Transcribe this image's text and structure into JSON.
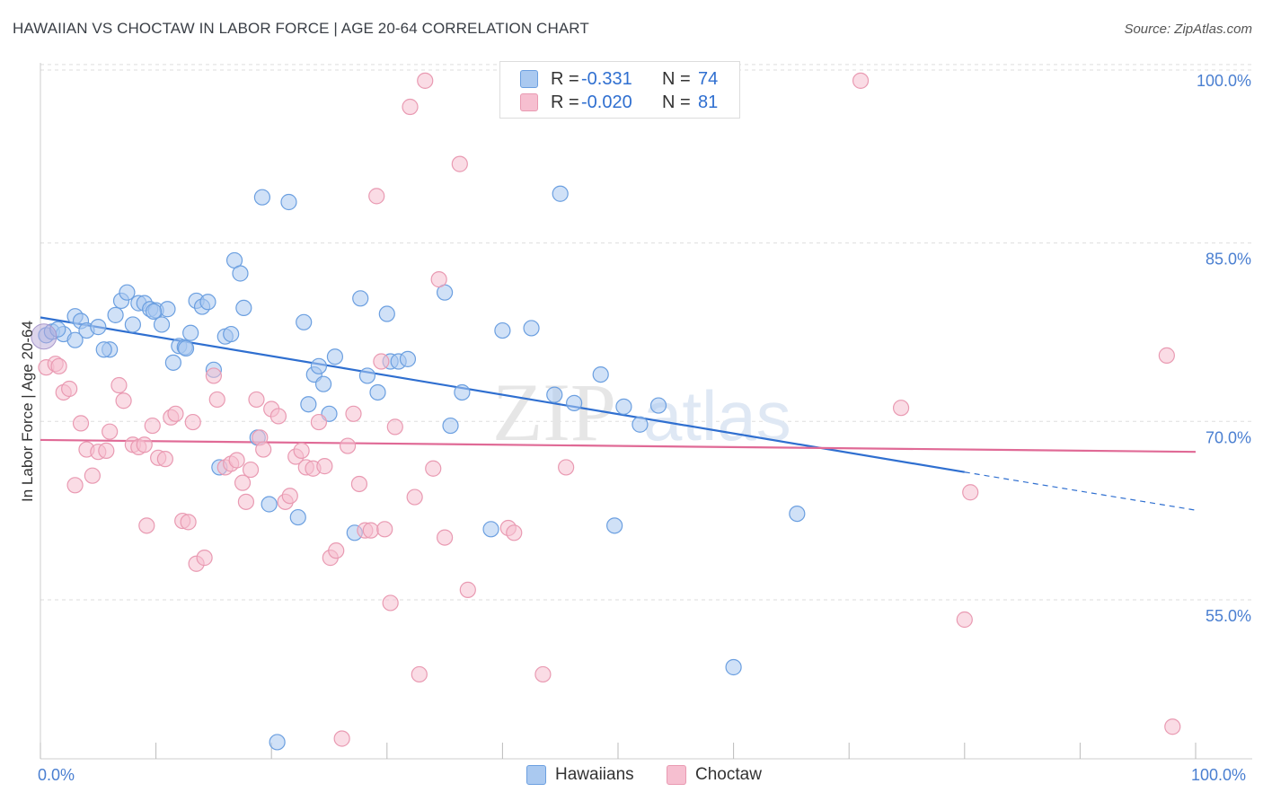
{
  "header": {
    "title": "HAWAIIAN VS CHOCTAW IN LABOR FORCE | AGE 20-64 CORRELATION CHART",
    "source": "Source: ZipAtlas.com"
  },
  "legend": {
    "rows": [
      {
        "r_label": "R =",
        "r_value": "-0.331",
        "n_label": "N =",
        "n_value": "74"
      },
      {
        "r_label": "R =",
        "r_value": "-0.020",
        "n_label": "N =",
        "n_value": "81"
      }
    ]
  },
  "bottom_legend": {
    "hawaiians": "Hawaiians",
    "choctaw": "Choctaw"
  },
  "watermark": {
    "zip": "ZIP",
    "atlas": "atlas"
  },
  "colors": {
    "hawaiian_fill": "#aac9f0",
    "hawaiian_stroke": "#6b9fe0",
    "hawaiian_line": "#2f6fd0",
    "choctaw_fill": "#f6bfd0",
    "choctaw_stroke": "#e99ab2",
    "choctaw_line": "#e06a96",
    "axis_label": "#4a7fd1",
    "grid": "#dddddd"
  },
  "chart_data": {
    "type": "scatter",
    "title": "HAWAIIAN VS CHOCTAW IN LABOR FORCE | AGE 20-64 CORRELATION CHART",
    "xlabel": "",
    "ylabel": "In Labor Force | Age 20-64",
    "xlim": [
      0,
      100
    ],
    "ylim": [
      43,
      101.5
    ],
    "x_tick_labels": [
      "0.0%",
      "100.0%"
    ],
    "y_ticks": [
      55,
      70,
      85,
      100
    ],
    "y_tick_labels": [
      "55.0%",
      "70.0%",
      "85.0%",
      "100.0%"
    ],
    "grid": true,
    "legend_position": "top-center",
    "series": [
      {
        "name": "Hawaiians",
        "r": -0.331,
        "n": 74,
        "trend": {
          "x0": 0,
          "y0": 80.1,
          "x1": 80,
          "y1": 67.1,
          "dashed_to_x": 100,
          "dashed_to_y": 63.9
        },
        "points": [
          [
            0.5,
            78.6
          ],
          [
            1.0,
            78.9
          ],
          [
            2.0,
            78.7
          ],
          [
            3.0,
            80.2
          ],
          [
            3.5,
            79.8
          ],
          [
            4.0,
            79.0
          ],
          [
            5.0,
            79.3
          ],
          [
            6.0,
            77.4
          ],
          [
            5.5,
            77.4
          ],
          [
            6.5,
            80.3
          ],
          [
            7.0,
            81.5
          ],
          [
            7.5,
            82.2
          ],
          [
            8.0,
            79.5
          ],
          [
            8.5,
            81.3
          ],
          [
            9.0,
            81.3
          ],
          [
            9.5,
            80.8
          ],
          [
            10.0,
            80.7
          ],
          [
            10.5,
            79.5
          ],
          [
            11.0,
            80.8
          ],
          [
            11.5,
            76.3
          ],
          [
            12.0,
            77.7
          ],
          [
            12.5,
            77.6
          ],
          [
            13.0,
            78.8
          ],
          [
            13.5,
            81.5
          ],
          [
            14.0,
            81.0
          ],
          [
            14.5,
            81.4
          ],
          [
            15.0,
            75.7
          ],
          [
            15.5,
            67.5
          ],
          [
            16.0,
            78.5
          ],
          [
            16.5,
            78.7
          ],
          [
            16.8,
            84.9
          ],
          [
            17.3,
            83.8
          ],
          [
            17.6,
            80.9
          ],
          [
            18.8,
            70.0
          ],
          [
            19.2,
            90.2
          ],
          [
            19.8,
            64.4
          ],
          [
            20.5,
            44.4
          ],
          [
            21.5,
            89.8
          ],
          [
            22.3,
            63.3
          ],
          [
            22.8,
            79.7
          ],
          [
            23.2,
            72.8
          ],
          [
            23.7,
            75.3
          ],
          [
            24.1,
            76.0
          ],
          [
            24.5,
            74.5
          ],
          [
            25.0,
            72.0
          ],
          [
            25.5,
            76.8
          ],
          [
            27.2,
            62.0
          ],
          [
            27.7,
            81.7
          ],
          [
            28.3,
            75.2
          ],
          [
            29.2,
            73.8
          ],
          [
            30.0,
            80.4
          ],
          [
            30.3,
            76.4
          ],
          [
            31.0,
            76.4
          ],
          [
            31.8,
            76.6
          ],
          [
            35.0,
            82.2
          ],
          [
            35.5,
            71.0
          ],
          [
            36.5,
            73.8
          ],
          [
            39.0,
            62.3
          ],
          [
            40.0,
            79.0
          ],
          [
            42.5,
            79.2
          ],
          [
            44.5,
            73.6
          ],
          [
            45.0,
            90.5
          ],
          [
            46.2,
            72.9
          ],
          [
            48.5,
            75.3
          ],
          [
            49.7,
            62.6
          ],
          [
            50.5,
            72.6
          ],
          [
            51.9,
            71.1
          ],
          [
            53.5,
            72.7
          ],
          [
            60.0,
            50.7
          ],
          [
            65.5,
            63.6
          ],
          [
            3.0,
            78.2
          ],
          [
            1.5,
            79.1
          ],
          [
            9.8,
            80.6
          ],
          [
            12.6,
            77.5
          ]
        ]
      },
      {
        "name": "Choctaw",
        "r": -0.02,
        "n": 81,
        "trend": {
          "x0": 0,
          "y0": 69.8,
          "x1": 100,
          "y1": 68.8
        },
        "points": [
          [
            0.5,
            75.9
          ],
          [
            1.3,
            76.2
          ],
          [
            1.6,
            76.0
          ],
          [
            2.0,
            73.8
          ],
          [
            2.5,
            74.1
          ],
          [
            3.0,
            66.0
          ],
          [
            3.5,
            71.2
          ],
          [
            4.0,
            69.0
          ],
          [
            4.5,
            66.8
          ],
          [
            5.0,
            68.8
          ],
          [
            5.7,
            68.9
          ],
          [
            6.0,
            70.5
          ],
          [
            6.8,
            74.4
          ],
          [
            7.2,
            73.1
          ],
          [
            8.0,
            69.4
          ],
          [
            8.5,
            69.2
          ],
          [
            9.0,
            69.4
          ],
          [
            9.2,
            62.6
          ],
          [
            9.7,
            71.0
          ],
          [
            10.2,
            68.3
          ],
          [
            10.8,
            68.2
          ],
          [
            11.3,
            71.7
          ],
          [
            11.7,
            72.0
          ],
          [
            12.3,
            63.0
          ],
          [
            12.8,
            62.9
          ],
          [
            13.2,
            71.3
          ],
          [
            13.5,
            59.4
          ],
          [
            14.2,
            59.9
          ],
          [
            15.0,
            75.2
          ],
          [
            15.3,
            73.2
          ],
          [
            16.0,
            67.5
          ],
          [
            16.5,
            67.8
          ],
          [
            17.0,
            68.1
          ],
          [
            17.5,
            66.2
          ],
          [
            17.8,
            64.6
          ],
          [
            18.2,
            67.3
          ],
          [
            18.7,
            73.2
          ],
          [
            19.0,
            70.0
          ],
          [
            19.3,
            69.0
          ],
          [
            20.0,
            72.4
          ],
          [
            20.6,
            71.8
          ],
          [
            21.2,
            64.6
          ],
          [
            21.6,
            65.1
          ],
          [
            22.1,
            68.4
          ],
          [
            22.6,
            68.9
          ],
          [
            23.0,
            67.5
          ],
          [
            23.6,
            67.4
          ],
          [
            24.1,
            71.3
          ],
          [
            24.6,
            67.6
          ],
          [
            25.1,
            59.9
          ],
          [
            25.6,
            60.5
          ],
          [
            26.1,
            44.7
          ],
          [
            26.6,
            69.3
          ],
          [
            27.1,
            72.0
          ],
          [
            27.6,
            66.1
          ],
          [
            28.1,
            62.2
          ],
          [
            28.6,
            62.2
          ],
          [
            29.1,
            90.3
          ],
          [
            29.5,
            76.4
          ],
          [
            29.8,
            62.3
          ],
          [
            30.3,
            56.1
          ],
          [
            30.7,
            70.9
          ],
          [
            32.0,
            97.8
          ],
          [
            32.4,
            65.0
          ],
          [
            32.8,
            50.1
          ],
          [
            33.3,
            100.0
          ],
          [
            34.0,
            67.4
          ],
          [
            34.5,
            83.3
          ],
          [
            35.0,
            61.6
          ],
          [
            36.3,
            93.0
          ],
          [
            37.0,
            57.2
          ],
          [
            40.5,
            62.4
          ],
          [
            43.5,
            50.1
          ],
          [
            45.5,
            67.5
          ],
          [
            71.0,
            100.0
          ],
          [
            74.5,
            72.5
          ],
          [
            80.0,
            54.7
          ],
          [
            80.5,
            65.4
          ],
          [
            97.5,
            76.9
          ],
          [
            98.0,
            45.7
          ],
          [
            41.0,
            62.0
          ]
        ]
      }
    ]
  }
}
